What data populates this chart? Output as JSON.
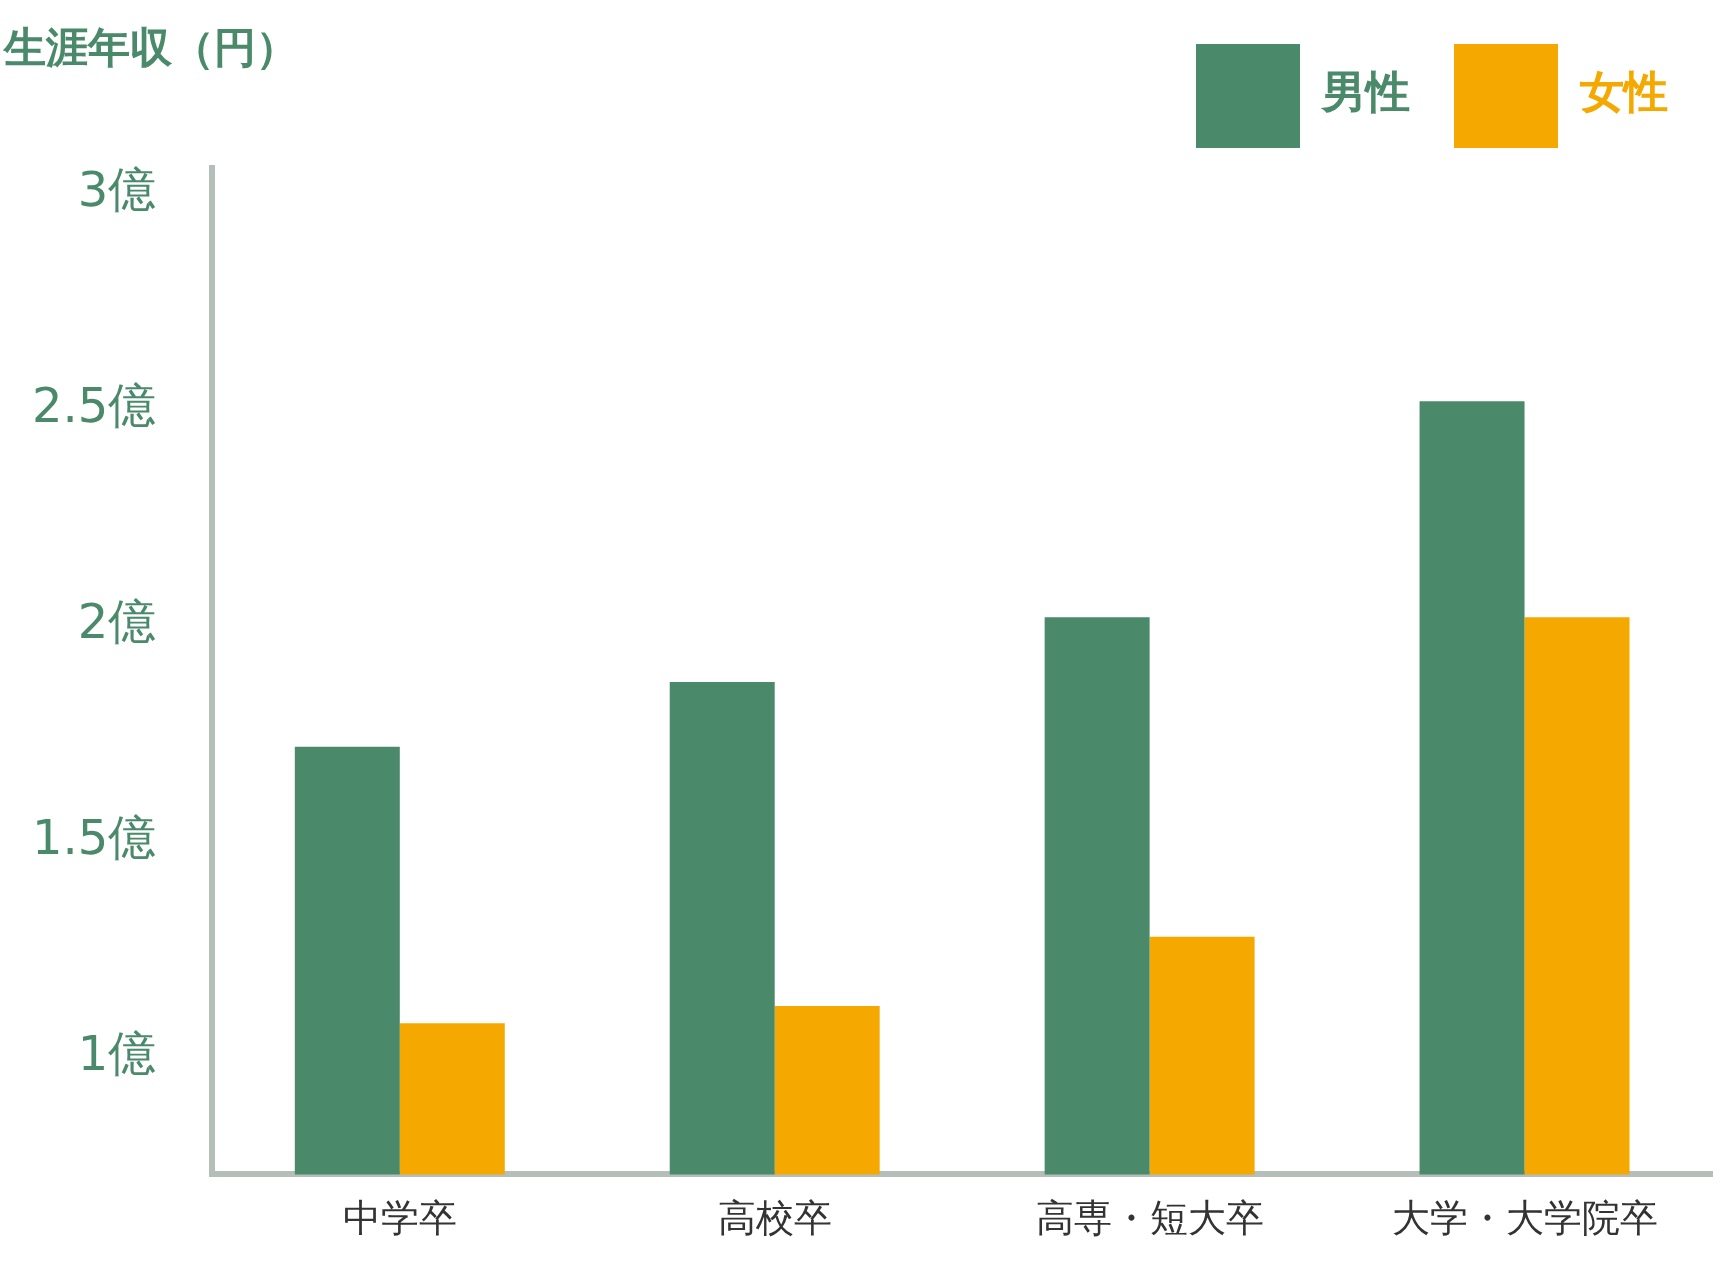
{
  "chart_data": {
    "type": "bar",
    "ylabel": "生涯年収（円）",
    "categories": [
      "中学卒",
      "高校卒",
      "高専・短大卒",
      "大学・大学院卒"
    ],
    "series": [
      {
        "name": "男性",
        "color": "#4a8a6a",
        "values": [
          1.72,
          1.87,
          2.02,
          2.52
        ]
      },
      {
        "name": "女性",
        "color": "#f5a800",
        "values": [
          1.08,
          1.12,
          1.28,
          2.02
        ]
      }
    ],
    "ylim": [
      0.73,
      3.06
    ],
    "yticks": [
      {
        "value": 1,
        "label": "1億"
      },
      {
        "value": 1.5,
        "label": "1.5億"
      },
      {
        "value": 2,
        "label": "2億"
      },
      {
        "value": 2.5,
        "label": "2.5億"
      },
      {
        "value": 3,
        "label": "3億"
      }
    ],
    "grid": false,
    "legend": "top right"
  }
}
